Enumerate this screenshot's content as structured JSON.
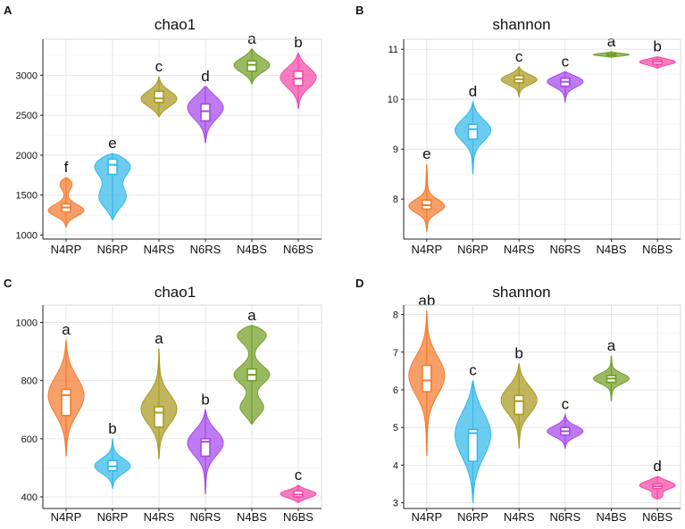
{
  "figure_type": "violin plots with embedded boxplots",
  "palette": {
    "N4RP": "#f47a2e",
    "N6RP": "#33b9ea",
    "N4RS": "#a99a20",
    "N6RS": "#a548ec",
    "N4BS": "#72a025",
    "N6BS": "#f548a8"
  },
  "chart_data": [
    {
      "panel": "A",
      "type": "violin",
      "title": "chao1",
      "categories": [
        "N4RP",
        "N6RP",
        "N4RS",
        "N6RS",
        "N4BS",
        "N6BS"
      ],
      "ylim": [
        950,
        3450
      ],
      "yticks": [
        1000,
        1500,
        2000,
        2500,
        3000
      ],
      "groups": [
        {
          "name": "N4RP",
          "min": 1100,
          "q1": 1290,
          "median": 1345,
          "q3": 1390,
          "max": 1720,
          "mode_points": [
            1300,
            1670
          ],
          "letter": "f"
        },
        {
          "name": "N6RP",
          "min": 1190,
          "q1": 1760,
          "median": 1880,
          "q3": 1950,
          "max": 2020,
          "mode_points": [
            1920,
            1450
          ],
          "letter": "e"
        },
        {
          "name": "N4RS",
          "min": 2480,
          "q1": 2660,
          "median": 2710,
          "q3": 2800,
          "max": 2980,
          "mode_points": [
            2700
          ],
          "letter": "c"
        },
        {
          "name": "N6RS",
          "min": 2150,
          "q1": 2430,
          "median": 2550,
          "q3": 2640,
          "max": 2860,
          "mode_points": [
            2620
          ],
          "letter": "d"
        },
        {
          "name": "N4BS",
          "min": 2890,
          "q1": 3050,
          "median": 3130,
          "q3": 3180,
          "max": 3330,
          "mode_points": [
            3130
          ],
          "letter": "a"
        },
        {
          "name": "N6BS",
          "min": 2580,
          "q1": 2870,
          "median": 2960,
          "q3": 3050,
          "max": 3280,
          "mode_points": [
            2980
          ],
          "letter": "b"
        }
      ]
    },
    {
      "panel": "B",
      "type": "violin",
      "title": "shannon",
      "categories": [
        "N4RP",
        "N6RP",
        "N4RS",
        "N6RS",
        "N4BS",
        "N6BS"
      ],
      "ylim": [
        7.2,
        11.2
      ],
      "yticks": [
        8,
        9,
        10,
        11
      ],
      "groups": [
        {
          "name": "N4RP",
          "min": 7.35,
          "q1": 7.8,
          "median": 7.88,
          "q3": 7.98,
          "max": 8.7,
          "mode_points": [
            7.85
          ],
          "letter": "e"
        },
        {
          "name": "N6RP",
          "min": 8.5,
          "q1": 9.2,
          "median": 9.4,
          "q3": 9.5,
          "max": 9.95,
          "mode_points": [
            9.4
          ],
          "letter": "d"
        },
        {
          "name": "N4RS",
          "min": 10.05,
          "q1": 10.33,
          "median": 10.4,
          "q3": 10.47,
          "max": 10.65,
          "mode_points": [
            10.4
          ],
          "letter": "c"
        },
        {
          "name": "N6RS",
          "min": 9.95,
          "q1": 10.26,
          "median": 10.35,
          "q3": 10.42,
          "max": 10.55,
          "mode_points": [
            10.38
          ],
          "letter": "c"
        },
        {
          "name": "N4BS",
          "min": 10.84,
          "q1": 10.87,
          "median": 10.89,
          "q3": 10.91,
          "max": 10.95,
          "mode_points": [
            10.89
          ],
          "letter": "a"
        },
        {
          "name": "N6BS",
          "min": 10.62,
          "q1": 10.7,
          "median": 10.75,
          "q3": 10.79,
          "max": 10.85,
          "mode_points": [
            10.75
          ],
          "letter": "b"
        }
      ]
    },
    {
      "panel": "C",
      "type": "violin",
      "title": "chao1",
      "categories": [
        "N4RP",
        "N6RP",
        "N4RS",
        "N6RS",
        "N4BS",
        "N6BS"
      ],
      "ylim": [
        360,
        1060
      ],
      "yticks": [
        400,
        600,
        800,
        1000
      ],
      "groups": [
        {
          "name": "N4RP",
          "min": 540,
          "q1": 680,
          "median": 750,
          "q3": 770,
          "max": 940,
          "mode_points": [
            750
          ],
          "letter": "a"
        },
        {
          "name": "N6RP",
          "min": 430,
          "q1": 490,
          "median": 505,
          "q3": 525,
          "max": 600,
          "mode_points": [
            505
          ],
          "letter": "b"
        },
        {
          "name": "N4RS",
          "min": 530,
          "q1": 640,
          "median": 690,
          "q3": 710,
          "max": 910,
          "mode_points": [
            700
          ],
          "letter": "a"
        },
        {
          "name": "N6RS",
          "min": 410,
          "q1": 540,
          "median": 590,
          "q3": 600,
          "max": 700,
          "mode_points": [
            590
          ],
          "letter": "b"
        },
        {
          "name": "N4BS",
          "min": 650,
          "q1": 800,
          "median": 820,
          "q3": 840,
          "max": 990,
          "mode_points": [
            970,
            820,
            700
          ],
          "letter": "a"
        },
        {
          "name": "N6BS",
          "min": 380,
          "q1": 400,
          "median": 408,
          "q3": 420,
          "max": 440,
          "mode_points": [
            410
          ],
          "letter": "c"
        }
      ]
    },
    {
      "panel": "D",
      "type": "violin",
      "title": "shannon",
      "categories": [
        "N4RP",
        "N6RP",
        "N4RS",
        "N6RS",
        "N4BS",
        "N6BS"
      ],
      "ylim": [
        2.85,
        8.25
      ],
      "yticks": [
        3,
        4,
        5,
        6,
        7,
        8
      ],
      "groups": [
        {
          "name": "N4RP",
          "min": 4.25,
          "q1": 5.95,
          "median": 6.25,
          "q3": 6.65,
          "max": 8.1,
          "mode_points": [
            6.4
          ],
          "letter": "ab"
        },
        {
          "name": "N6RP",
          "min": 3.0,
          "q1": 4.1,
          "median": 4.85,
          "q3": 4.95,
          "max": 6.25,
          "mode_points": [
            4.85
          ],
          "letter": "c"
        },
        {
          "name": "N4RS",
          "min": 4.45,
          "q1": 5.35,
          "median": 5.7,
          "q3": 5.85,
          "max": 6.7,
          "mode_points": [
            5.75
          ],
          "letter": "b"
        },
        {
          "name": "N6RS",
          "min": 4.45,
          "q1": 4.8,
          "median": 4.9,
          "q3": 5.0,
          "max": 5.35,
          "mode_points": [
            4.9
          ],
          "letter": "c"
        },
        {
          "name": "N4BS",
          "min": 5.7,
          "q1": 6.2,
          "median": 6.3,
          "q3": 6.38,
          "max": 6.9,
          "mode_points": [
            6.3
          ],
          "letter": "a"
        },
        {
          "name": "N6BS",
          "min": 3.1,
          "q1": 3.38,
          "median": 3.44,
          "q3": 3.5,
          "max": 3.7,
          "mode_points": [
            3.45,
            3.6,
            3.15
          ],
          "letter": "d"
        }
      ]
    }
  ]
}
